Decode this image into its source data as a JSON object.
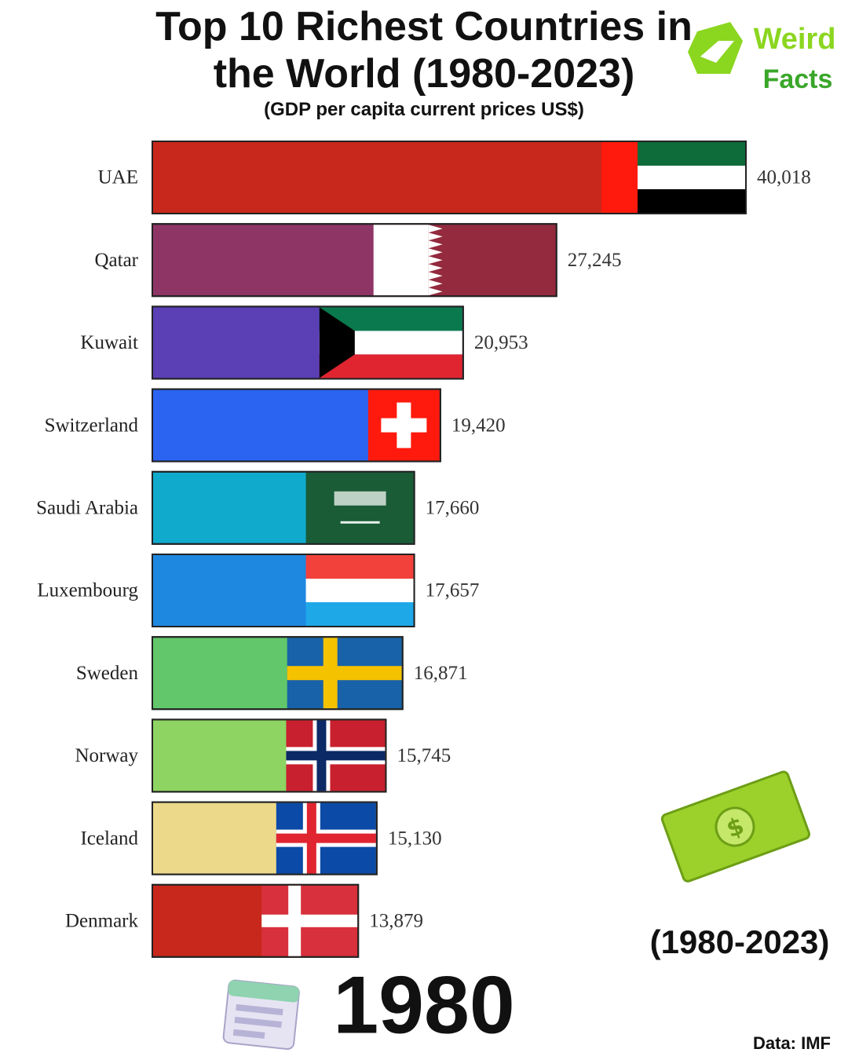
{
  "chart_data": {
    "type": "bar",
    "orientation": "horizontal",
    "title": "Top 10 Richest Countries in the World (1980-2023)",
    "subtitle": "(GDP per capita current prices US$)",
    "categories": [
      "UAE",
      "Qatar",
      "Kuwait",
      "Switzerland",
      "Saudi Arabia",
      "Luxembourg",
      "Sweden",
      "Norway",
      "Iceland",
      "Denmark"
    ],
    "values": [
      40018,
      27245,
      20953,
      19420,
      17660,
      17657,
      16871,
      15745,
      15130,
      13879
    ],
    "value_labels": [
      "40,018",
      "27,245",
      "20,953",
      "19,420",
      "17,660",
      "17,657",
      "16,871",
      "15,745",
      "15,130",
      "13,879"
    ],
    "colors": [
      "#c8281c",
      "#8e3566",
      "#5a3fb5",
      "#2a64f0",
      "#10aacc",
      "#1e88e0",
      "#62c76a",
      "#8ed462",
      "#ecd98a",
      "#c8281c"
    ],
    "year": "1980",
    "period": "(1980-2023)",
    "source": "Data: IMF",
    "logo": {
      "line1": "Weird",
      "line2": "Facts"
    }
  }
}
